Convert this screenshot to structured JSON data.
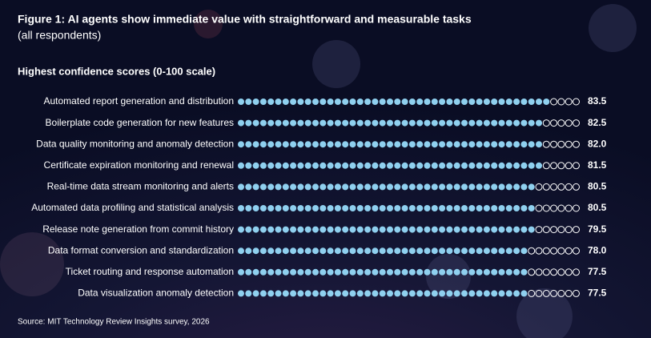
{
  "chart_data": {
    "type": "dot",
    "title": "Figure 1: AI agents show immediate value with straightforward and measurable tasks",
    "subtitle": "(all respondents)",
    "axis_label": "Highest confidence scores (0-100 scale)",
    "source": "Source: MIT Technology Review Insights survey, 2026",
    "categories": [
      "Automated report generation and distribution",
      "Boilerplate code generation for new features",
      "Data quality monitoring and anomaly detection",
      "Certificate expiration monitoring and renewal",
      "Real-time data stream monitoring and alerts",
      "Automated data profiling and statistical analysis",
      "Release note generation from commit history",
      "Data format conversion and standardization",
      "Ticket routing and response automation",
      "Data visualization anomaly detection"
    ],
    "values": [
      83.5,
      82.5,
      82,
      81.5,
      80.5,
      80.5,
      79.5,
      78,
      77.5,
      77.5
    ],
    "value_labels": [
      "83.5",
      "82.5",
      "82.0",
      "81.5",
      "80.5",
      "80.5",
      "79.5",
      "78.0",
      "77.5",
      "77.5"
    ],
    "xlim": [
      0,
      92
    ],
    "color": "#8fd0ef"
  }
}
